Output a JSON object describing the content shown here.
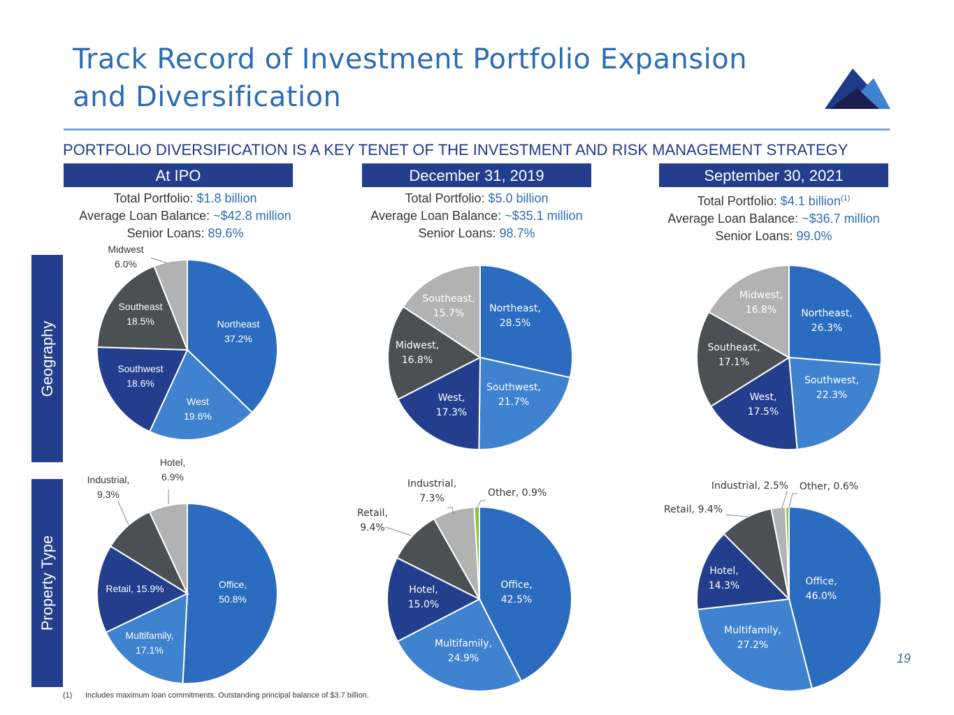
{
  "page": {
    "title_line1": "Track Record of Investment Portfolio Expansion",
    "title_line2": "and Diversification",
    "subtitle": "PORTFOLIO DIVERSIFICATION IS A KEY TENET OF THE INVESTMENT AND RISK MANAGEMENT STRATEGY",
    "row_labels": [
      "Geography",
      "Property Type"
    ],
    "page_number": "19",
    "footnote_marker": "(1)",
    "footnote_text": "Includes maximum loan commitments. Outstanding principal balance of $3.7 billion."
  },
  "columns": [
    {
      "header": "At IPO",
      "total_label": "Total Portfolio: ",
      "total_value": "$1.8 billion",
      "total_note": "",
      "avg_label": "Average Loan Balance: ",
      "avg_value": "~$42.8 million",
      "senior_label": "Senior Loans: ",
      "senior_value": "89.6%"
    },
    {
      "header": "December 31, 2019",
      "total_label": "Total Portfolio: ",
      "total_value": "$5.0 billion",
      "total_note": "",
      "avg_label": "Average Loan Balance: ",
      "avg_value": "~$35.1 million",
      "senior_label": "Senior Loans: ",
      "senior_value": "98.7%"
    },
    {
      "header": "September 30, 2021",
      "total_label": "Total Portfolio: ",
      "total_value": "$4.1 billion",
      "total_note": "(1)",
      "avg_label": "Average Loan Balance: ",
      "avg_value": "~$36.7 million",
      "senior_label": "Senior Loans: ",
      "senior_value": "99.0%"
    }
  ],
  "colors": {
    "blue_dark": "#223e8d",
    "blue_mid": "#2b6cc0",
    "blue_light": "#3f82cf",
    "gray_dark": "#4a5053",
    "gray_light": "#b2b2b2",
    "green": "#8ec13f",
    "accent": "#2b6cb5"
  },
  "chart_data": [
    {
      "type": "pie",
      "name": "ipo-geography",
      "slices": [
        {
          "label": "Northeast",
          "value": 37.2,
          "text": [
            "Northeast",
            "37.2%"
          ],
          "color": "#2b6cc0"
        },
        {
          "label": "West",
          "value": 19.6,
          "text": [
            "West",
            "19.6%"
          ],
          "color": "#3f82cf"
        },
        {
          "label": "Southwest",
          "value": 18.6,
          "text": [
            "Southwest",
            "18.6%"
          ],
          "color": "#223e8d"
        },
        {
          "label": "Southeast",
          "value": 18.5,
          "text": [
            "Southeast",
            "18.5%"
          ],
          "color": "#4a5053"
        },
        {
          "label": "Midwest",
          "value": 6.0,
          "text": [
            "Midwest",
            "6.0%"
          ],
          "color": "#b2b2b2"
        }
      ]
    },
    {
      "type": "pie",
      "name": "dec2019-geography",
      "slices": [
        {
          "label": "Northeast",
          "value": 28.5,
          "text": [
            "Northeast,",
            "28.5%"
          ],
          "color": "#2b6cc0"
        },
        {
          "label": "Southwest",
          "value": 21.7,
          "text": [
            "Southwest,",
            "21.7%"
          ],
          "color": "#3f82cf"
        },
        {
          "label": "West",
          "value": 17.3,
          "text": [
            "West,",
            "17.3%"
          ],
          "color": "#223e8d"
        },
        {
          "label": "Midwest",
          "value": 16.8,
          "text": [
            "Midwest,",
            "16.8%"
          ],
          "color": "#4a5053"
        },
        {
          "label": "Southeast",
          "value": 15.7,
          "text": [
            "Southeast,",
            "15.7%"
          ],
          "color": "#b2b2b2"
        }
      ]
    },
    {
      "type": "pie",
      "name": "sep2021-geography",
      "slices": [
        {
          "label": "Northeast",
          "value": 26.3,
          "text": [
            "Northeast,",
            "26.3%"
          ],
          "color": "#2b6cc0"
        },
        {
          "label": "Southwest",
          "value": 22.3,
          "text": [
            "Southwest,",
            "22.3%"
          ],
          "color": "#3f82cf"
        },
        {
          "label": "West",
          "value": 17.5,
          "text": [
            "West,",
            "17.5%"
          ],
          "color": "#223e8d"
        },
        {
          "label": "Southeast",
          "value": 17.1,
          "text": [
            "Southeast,",
            "17.1%"
          ],
          "color": "#4a5053"
        },
        {
          "label": "Midwest",
          "value": 16.8,
          "text": [
            "Midwest,",
            "16.8%"
          ],
          "color": "#b2b2b2"
        }
      ]
    },
    {
      "type": "pie",
      "name": "ipo-property-type",
      "slices": [
        {
          "label": "Office",
          "value": 50.8,
          "text": [
            "Office,",
            "50.8%"
          ],
          "color": "#2b6cc0"
        },
        {
          "label": "Multifamily",
          "value": 17.1,
          "text": [
            "Multifamily,",
            "17.1%"
          ],
          "color": "#3f82cf"
        },
        {
          "label": "Retail",
          "value": 15.9,
          "text": [
            "Retail, 15.9%"
          ],
          "color": "#223e8d"
        },
        {
          "label": "Industrial",
          "value": 9.3,
          "text": [
            "Industrial,",
            "9.3%"
          ],
          "color": "#4a5053"
        },
        {
          "label": "Hotel",
          "value": 6.9,
          "text": [
            "Hotel,",
            "6.9%"
          ],
          "color": "#b2b2b2"
        }
      ]
    },
    {
      "type": "pie",
      "name": "dec2019-property-type",
      "slices": [
        {
          "label": "Office",
          "value": 42.5,
          "text": [
            "Office,",
            "42.5%"
          ],
          "color": "#2b6cc0"
        },
        {
          "label": "Multifamily",
          "value": 24.9,
          "text": [
            "Multifamily,",
            "24.9%"
          ],
          "color": "#3f82cf"
        },
        {
          "label": "Hotel",
          "value": 15.0,
          "text": [
            "Hotel,",
            "15.0%"
          ],
          "color": "#223e8d"
        },
        {
          "label": "Retail",
          "value": 9.4,
          "text": [
            "Retail,",
            "9.4%"
          ],
          "color": "#4a5053"
        },
        {
          "label": "Industrial",
          "value": 7.3,
          "text": [
            "Industrial,",
            "7.3%"
          ],
          "color": "#b2b2b2"
        },
        {
          "label": "Other",
          "value": 0.9,
          "text": [
            "Other, 0.9%"
          ],
          "color": "#8ec13f"
        }
      ]
    },
    {
      "type": "pie",
      "name": "sep2021-property-type",
      "slices": [
        {
          "label": "Office",
          "value": 46.0,
          "text": [
            "Office,",
            "46.0%"
          ],
          "color": "#2b6cc0"
        },
        {
          "label": "Multifamily",
          "value": 27.2,
          "text": [
            "Multifamily,",
            "27.2%"
          ],
          "color": "#3f82cf"
        },
        {
          "label": "Hotel",
          "value": 14.3,
          "text": [
            "Hotel,",
            "14.3%"
          ],
          "color": "#223e8d"
        },
        {
          "label": "Retail",
          "value": 9.4,
          "text": [
            "Retail, 9.4%"
          ],
          "color": "#4a5053"
        },
        {
          "label": "Industrial",
          "value": 2.5,
          "text": [
            "Industrial, 2.5%"
          ],
          "color": "#b2b2b2"
        },
        {
          "label": "Other",
          "value": 0.6,
          "text": [
            "Other, 0.6%"
          ],
          "color": "#8ec13f"
        }
      ]
    }
  ]
}
